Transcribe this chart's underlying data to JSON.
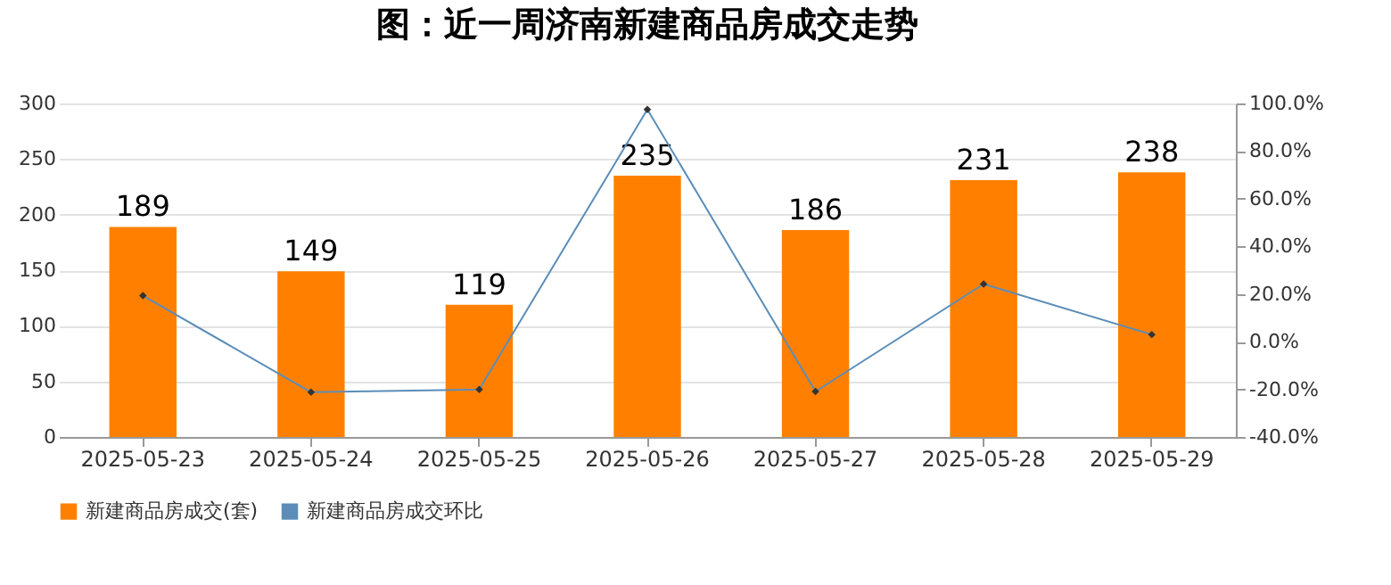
{
  "chart_data": {
    "type": "bar",
    "title": "图：近一周济南新建商品房成交走势",
    "categories": [
      "2025-05-23",
      "2025-05-24",
      "2025-05-25",
      "2025-05-26",
      "2025-05-27",
      "2025-05-28",
      "2025-05-29"
    ],
    "series": [
      {
        "name": "新建商品房成交(套)",
        "color": "#ff8000",
        "values": [
          189,
          149,
          119,
          235,
          186,
          231,
          238
        ],
        "value_labels": [
          "189",
          "149",
          "119",
          "235",
          "186",
          "231",
          "238"
        ]
      },
      {
        "name": "新建商品房成交环比",
        "type": "line",
        "axis": "y2",
        "color": "#5b8db8",
        "values": [
          19.3,
          -21.2,
          -20.1,
          97.5,
          -20.9,
          24.2,
          3.0
        ]
      }
    ],
    "ylim": [
      0,
      300
    ],
    "yticks": [
      0,
      50,
      100,
      150,
      200,
      250,
      300
    ],
    "y2lim": [
      -40,
      100
    ],
    "y2ticks": [
      {
        "value": -40,
        "label": "-40.0%"
      },
      {
        "value": -20,
        "label": "-20.0%"
      },
      {
        "value": 0,
        "label": "0.0%"
      },
      {
        "value": 20,
        "label": "20.0%"
      },
      {
        "value": 40,
        "label": "40.0%"
      },
      {
        "value": 60,
        "label": "60.0%"
      },
      {
        "value": 80,
        "label": "80.0%"
      },
      {
        "value": 100,
        "label": "100.0%"
      }
    ],
    "grid": "y",
    "legend": "bottom",
    "marker": "diamond",
    "line_style": "solid"
  }
}
